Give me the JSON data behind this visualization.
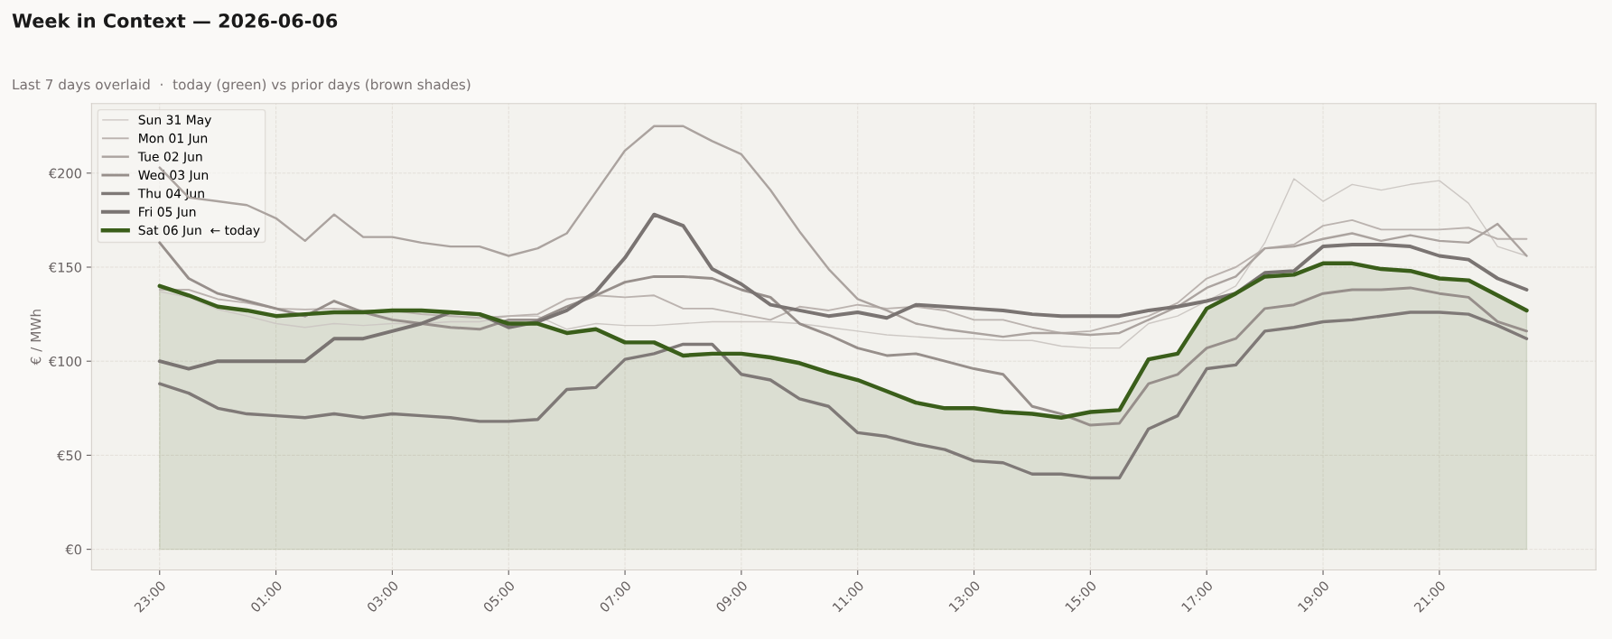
{
  "chart_data": {
    "type": "line",
    "title": "Week in Context — 2026-06-06",
    "subtitle": "Last 7 days overlaid  ·  today (green) vs prior days (brown shades)",
    "ylabel": "€ / MWh",
    "categories": [
      "23:00",
      null,
      null,
      null,
      "01:00",
      null,
      null,
      null,
      "03:00",
      null,
      null,
      null,
      "05:00",
      null,
      null,
      null,
      "07:00",
      null,
      null,
      null,
      "09:00",
      null,
      null,
      null,
      "11:00",
      null,
      null,
      null,
      "13:00",
      null,
      null,
      null,
      "15:00",
      null,
      null,
      null,
      "17:00",
      null,
      null,
      null,
      "19:00",
      null,
      null,
      null,
      "21:00",
      null,
      null,
      null
    ],
    "ylim": [
      -11,
      237
    ],
    "yticks": [
      {
        "value": 0,
        "label": "€0"
      },
      {
        "value": 50,
        "label": "€50"
      },
      {
        "value": 100,
        "label": "€100"
      },
      {
        "value": 150,
        "label": "€150"
      },
      {
        "value": 200,
        "label": "€200"
      }
    ],
    "grid": true,
    "legend": "top left",
    "series": [
      {
        "name": "Sun 31 May",
        "color": "#cdc8c4",
        "values": [
          137,
          134,
          127.5,
          124,
          120,
          118,
          120,
          119,
          120,
          120,
          121,
          121,
          124,
          124,
          117,
          120,
          119,
          119,
          120,
          121,
          121,
          121,
          120,
          118,
          116,
          114,
          113,
          112,
          112,
          111,
          111,
          108,
          107,
          107,
          120,
          124,
          132,
          140,
          163,
          197,
          185,
          194,
          191,
          194,
          196,
          184,
          161,
          156
        ]
      },
      {
        "name": "Mon 01 Jun",
        "color": "#bbb3af",
        "values": [
          138,
          138,
          133,
          131,
          128,
          127.5,
          128,
          127,
          127,
          125,
          124,
          123,
          124,
          125,
          133,
          135,
          134,
          135,
          128,
          128,
          125,
          122,
          129,
          127,
          130,
          128,
          129,
          127,
          122,
          122,
          118,
          115,
          116,
          120,
          124,
          131,
          144,
          150,
          160,
          162,
          172,
          175,
          170,
          170,
          170,
          171,
          165,
          165
        ]
      },
      {
        "name": "Tue 02 Jun",
        "color": "#aba39f",
        "values": [
          203,
          187,
          185,
          183,
          176,
          164,
          178,
          166,
          166,
          163,
          161,
          161,
          156,
          160,
          168,
          190,
          212,
          225,
          225,
          217,
          210,
          191,
          169,
          149,
          133,
          127,
          120,
          117,
          115,
          113,
          115,
          115,
          114,
          115,
          122,
          129,
          139,
          145,
          160,
          161,
          165,
          168,
          164,
          167,
          164,
          163,
          173,
          156
        ]
      },
      {
        "name": "Wed 03 Jun",
        "color": "#978f8b",
        "values": [
          163,
          144,
          136,
          132,
          128,
          124,
          132,
          126,
          122,
          120,
          118,
          117,
          122,
          122,
          129,
          135,
          142,
          145,
          145,
          144,
          138,
          134,
          120,
          114,
          107,
          103,
          104,
          100,
          96,
          93,
          76,
          72,
          66,
          67,
          88,
          93,
          107,
          112,
          128,
          130,
          136,
          138,
          138,
          139,
          136,
          134,
          121,
          116
        ]
      },
      {
        "name": "Thu 04 Jun",
        "color": "#7f7977",
        "values": [
          88,
          83,
          75,
          72,
          71,
          70,
          72,
          70,
          72,
          71,
          70,
          68,
          68,
          69,
          85,
          86,
          101,
          104,
          109,
          109,
          93,
          90,
          80,
          76,
          62,
          60,
          56,
          53,
          47,
          46,
          40,
          40,
          38,
          38,
          64,
          71,
          96,
          98,
          116,
          118,
          121,
          122,
          124,
          126,
          126,
          125,
          119,
          112
        ]
      },
      {
        "name": "Fri 05 Jun",
        "color": "#7a7472",
        "values": [
          100,
          96,
          100,
          100,
          100,
          100,
          112,
          112,
          116,
          120,
          126,
          125,
          118,
          121,
          127,
          137,
          155,
          178,
          172,
          149,
          141,
          130,
          127,
          124,
          126,
          123,
          130,
          129,
          128,
          127,
          125,
          124,
          124,
          124,
          127,
          129,
          132,
          136,
          147,
          148,
          161,
          162,
          162,
          161,
          156,
          154,
          144,
          138
        ]
      },
      {
        "name": "Sat 06 Jun  ← today",
        "color": "#3a5e1a",
        "type": "area",
        "values": [
          140,
          135,
          129,
          127,
          124,
          125,
          126,
          126,
          127,
          127,
          126,
          125,
          120,
          120,
          115,
          117,
          110,
          110,
          103,
          104,
          104,
          102,
          99,
          94,
          90,
          84,
          78,
          75,
          75,
          73,
          72,
          70,
          73,
          74,
          101,
          104,
          128,
          136,
          145,
          146,
          152,
          152,
          149,
          148,
          144,
          143,
          135,
          127
        ]
      }
    ]
  }
}
